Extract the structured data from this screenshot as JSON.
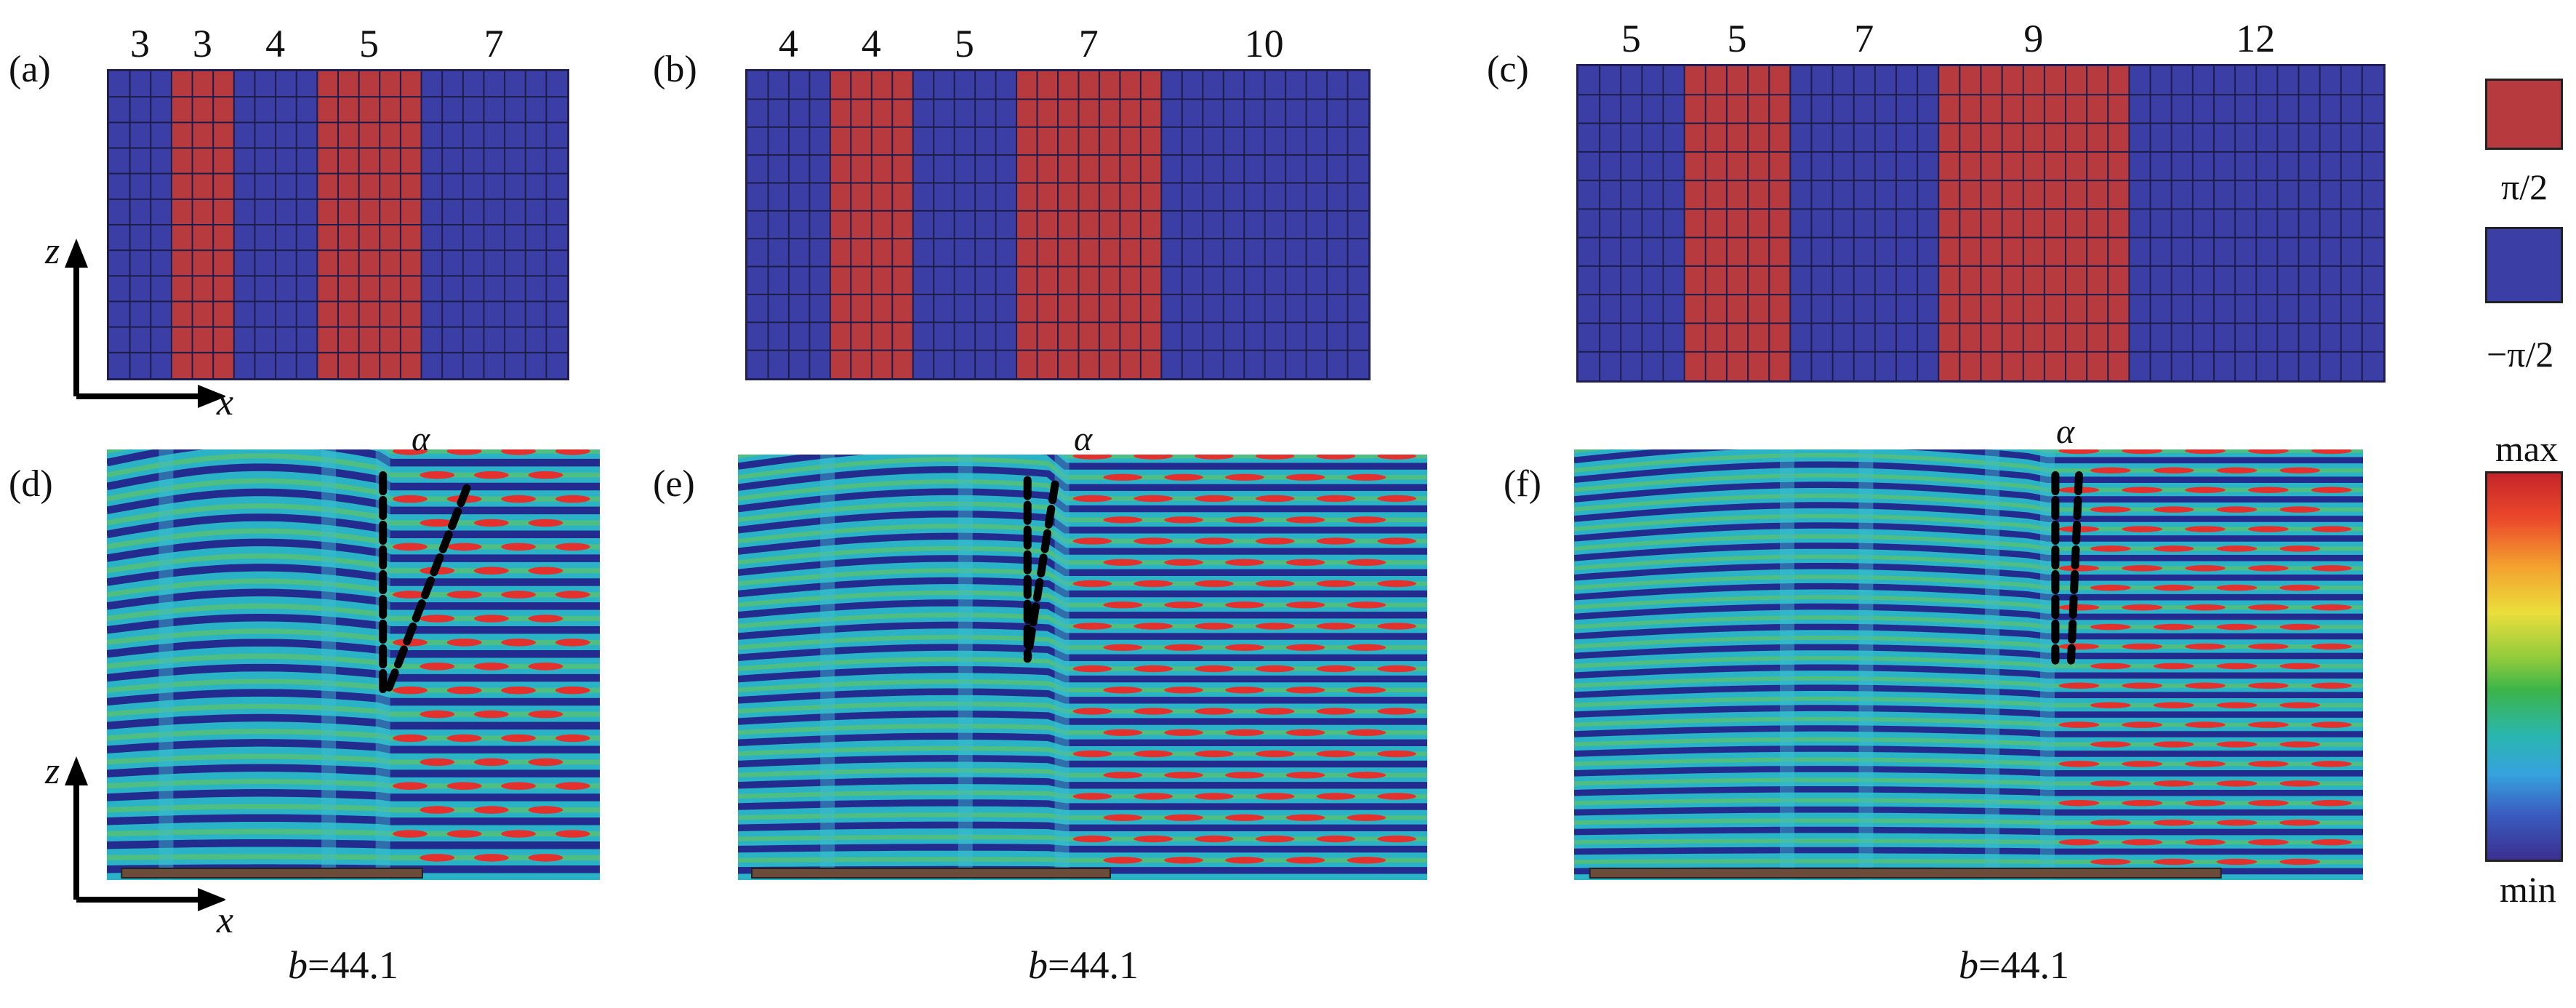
{
  "panels": {
    "a": {
      "label": "(a)",
      "counts": [
        "3",
        "3",
        "4",
        "5",
        "7"
      ],
      "phases": [
        "-π/2",
        "π/2",
        "-π/2",
        "π/2",
        "-π/2"
      ]
    },
    "b": {
      "label": "(b)",
      "counts": [
        "4",
        "4",
        "5",
        "7",
        "10"
      ],
      "phases": [
        "-π/2",
        "π/2",
        "-π/2",
        "π/2",
        "-π/2"
      ]
    },
    "c": {
      "label": "(c)",
      "counts": [
        "5",
        "5",
        "7",
        "9",
        "12"
      ],
      "phases": [
        "-π/2",
        "π/2",
        "-π/2",
        "π/2",
        "-π/2"
      ]
    },
    "d": {
      "label": "(d)",
      "alpha": "α",
      "caption_var": "b",
      "caption_val": "=44.1"
    },
    "e": {
      "label": "(e)",
      "alpha": "α",
      "caption_var": "b",
      "caption_val": "=44.1"
    },
    "f": {
      "label": "(f)",
      "alpha": "α",
      "caption_var": "b",
      "caption_val": "=44.1"
    }
  },
  "axes": {
    "z": "z",
    "x": "x"
  },
  "legend": {
    "phase_high": "π/2",
    "phase_low": "−π/2",
    "max": "max",
    "min": "min"
  },
  "colors": {
    "phase_high": "#b63a3e",
    "phase_low": "#3b3ea5",
    "grid_line": "#1c1c4a",
    "field_bg": "#2ab3c6",
    "field_dark": "#232b8f",
    "field_peak": "#e3322d"
  }
}
